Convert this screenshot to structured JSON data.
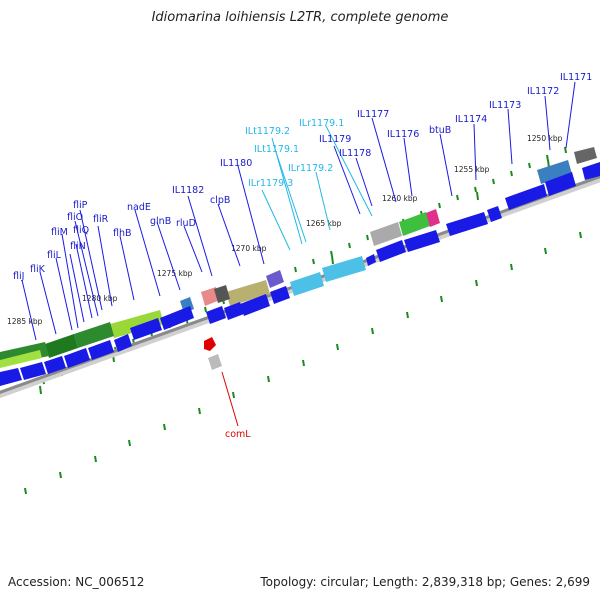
{
  "title": "Idiomarina loihiensis L2TR, complete genome",
  "footer": {
    "accession": "Accession: NC_006512",
    "summary": "Topology: circular; Length: 2,839,318 bp; Genes: 2,699"
  },
  "colors": {
    "cds": "#1a1ae6",
    "cds_label": "#1a1acc",
    "rna_label": "#22b8e6",
    "highlight_label": "#e00000",
    "tick": "#1e8a1e",
    "backbone": "#8a8a8a"
  },
  "scale_labels": [
    "1250 kbp",
    "1255 kbp",
    "1260 kbp",
    "1265 kbp",
    "1270 kbp",
    "1275 kbp",
    "1280 kbp",
    "1285 kbp"
  ],
  "gene_labels": [
    "IL1171",
    "IL1172",
    "IL1173",
    "IL1174",
    "btuB",
    "IL1176",
    "IL1177",
    "IL1178",
    "IL1179",
    "ILr1179.1",
    "ILr1179.2",
    "ILt1179.1",
    "ILt1179.2",
    "ILr1179.3",
    "IL1180",
    "clpB",
    "IL1182",
    "rluD",
    "glnB",
    "nadE",
    "flhB",
    "fliR",
    "fliQ",
    "fliP",
    "fliO",
    "fliN",
    "fliM",
    "fliL",
    "fliK",
    "fliJ"
  ],
  "highlight_label": "comL"
}
